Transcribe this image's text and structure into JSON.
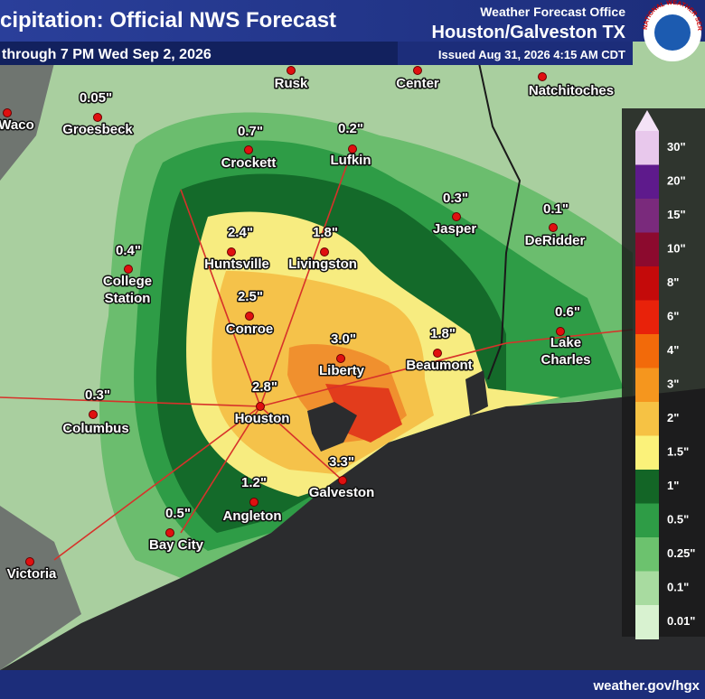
{
  "header": {
    "title": "cipitation: Official NWS Forecast",
    "subtitle": "through 7 PM Wed Sep 2, 2026",
    "office_line": "Weather Forecast Office",
    "office": "Houston/Galveston TX",
    "issued": "Issued Aug 31, 2026 4:15 AM CDT",
    "logo_text": "NATIONAL WEATHER SERVICE"
  },
  "cities": [
    {
      "name": "Waco"
    },
    {
      "name": "Groesbeck",
      "amount": "0.05\""
    },
    {
      "name": "Rusk"
    },
    {
      "name": "Center"
    },
    {
      "name": "Natchitoches"
    },
    {
      "name": "Crockett",
      "amount": "0.7\""
    },
    {
      "name": "Lufkin",
      "amount": "0.2\""
    },
    {
      "name": "Jasper",
      "amount": "0.3\""
    },
    {
      "name": "DeRidder",
      "amount": "0.1\""
    },
    {
      "name": "College Station",
      "amount": "0.4\""
    },
    {
      "name": "Huntsville",
      "amount": "2.4\""
    },
    {
      "name": "Livingston",
      "amount": "1.8\""
    },
    {
      "name": "Conroe",
      "amount": "2.5\""
    },
    {
      "name": "Liberty",
      "amount": "3.0\""
    },
    {
      "name": "Beaumont",
      "amount": "1.8\""
    },
    {
      "name": "Lake Charles",
      "amount": "0.6\""
    },
    {
      "name": "Columbus",
      "amount": "0.3\""
    },
    {
      "name": "Houston",
      "amount": "2.8\""
    },
    {
      "name": "Galveston",
      "amount": "3.3\""
    },
    {
      "name": "Angleton",
      "amount": "1.2\""
    },
    {
      "name": "Bay City",
      "amount": "0.5\""
    },
    {
      "name": "Victoria"
    }
  ],
  "legend": {
    "labels": [
      "30\"",
      "20\"",
      "15\"",
      "10\"",
      "8\"",
      "6\"",
      "4\"",
      "3\"",
      "2\"",
      "1.5\"",
      "1\"",
      "0.5\"",
      "0.25\"",
      "0.1\"",
      "0.01\""
    ],
    "colors": [
      "#e8c8ec",
      "#5e1a8c",
      "#7a2a7c",
      "#8c0a2e",
      "#c40a0a",
      "#e8220a",
      "#f26a0a",
      "#f5961e",
      "#f6c244",
      "#fbf27a",
      "#136526",
      "#2e9c46",
      "#6cc26e",
      "#a8dba0",
      "#d8f2d0"
    ]
  },
  "footer": {
    "url": "weather.gov/hgx"
  }
}
